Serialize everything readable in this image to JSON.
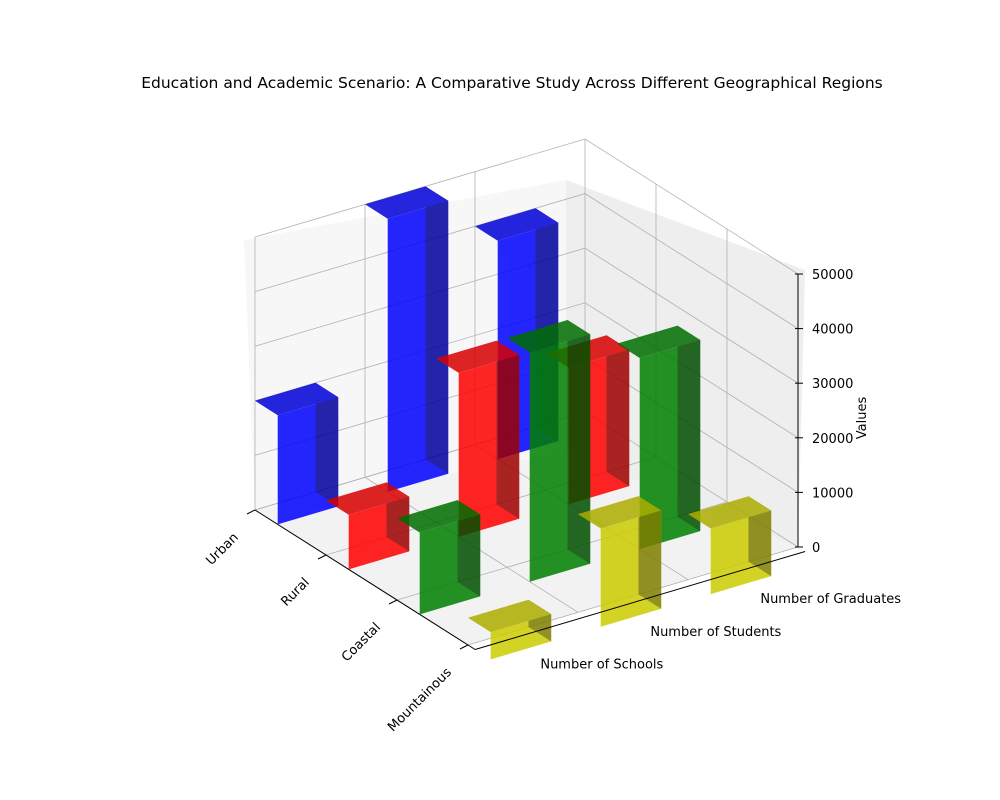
{
  "chart_data": {
    "type": "bar",
    "title": "Education and Academic Scenario: A Comparative Study Across Different Geographical Regions",
    "xlabel": "",
    "ylabel": "",
    "zlabel": "Values",
    "categories": [
      "Urban",
      "Rural",
      "Coastal",
      "Mountainous"
    ],
    "metrics": [
      "Number of Schools",
      "Number of Students",
      "Number of Graduates"
    ],
    "zlim": [
      0,
      50000
    ],
    "z_ticks": [
      "0",
      "10000",
      "20000",
      "30000",
      "40000",
      "50000"
    ],
    "grid": true,
    "colors": [
      "#0000ff",
      "#ff0000",
      "#008000",
      "#cccc00"
    ],
    "values": [
      [
        20000,
        50000,
        40000
      ],
      [
        10000,
        30000,
        25000
      ],
      [
        15000,
        42000,
        35000
      ],
      [
        5000,
        18000,
        12000
      ]
    ]
  }
}
